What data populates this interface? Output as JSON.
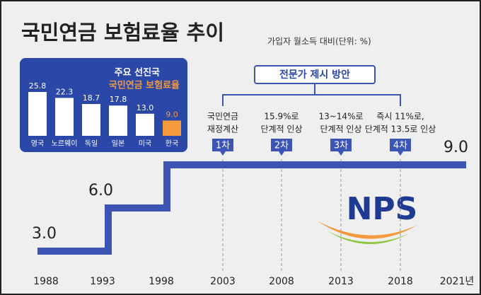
{
  "chart_data": [
    {
      "type": "step",
      "title": "국민연금 보험료율 추이",
      "subtitle": "가입자 월소득 대비(단위: %)",
      "x": [
        "1988",
        "1993",
        "1998",
        "2003",
        "2008",
        "2013",
        "2018",
        "2021년"
      ],
      "values": [
        3,
        6,
        9,
        9,
        9,
        9,
        9,
        9
      ],
      "value_labels": [
        "3.0",
        "6.0",
        null,
        null,
        null,
        null,
        null,
        "9.0"
      ],
      "color": "#3c54b4",
      "proposal_title": "전문가 제시 방안",
      "proposals": [
        {
          "stage": "1차",
          "x": "2003",
          "lines": [
            "국민연금",
            "재정계산"
          ]
        },
        {
          "stage": "2차",
          "x": "2008",
          "lines": [
            "15.9%로",
            "단계적 인상"
          ]
        },
        {
          "stage": "3차",
          "x": "2013",
          "lines": [
            "13~14%로",
            "단계적 인상"
          ]
        },
        {
          "stage": "4차",
          "x": "2018",
          "lines": [
            "즉시 11%로,",
            "단계적 13.5로 인상"
          ]
        }
      ]
    },
    {
      "type": "bar",
      "title": [
        "주요 선진국",
        "국민연금 보험료율"
      ],
      "categories": [
        "영국",
        "노르웨이",
        "독일",
        "일본",
        "미국",
        "한국"
      ],
      "values": [
        25.8,
        22.3,
        18.7,
        17.8,
        13,
        9
      ],
      "value_labels": [
        "25.8",
        "22.3",
        "18.7",
        "17.8",
        "13.0",
        "9.0"
      ],
      "colors": [
        "#ffffff",
        "#ffffff",
        "#ffffff",
        "#ffffff",
        "#ffffff",
        "#f39a3c"
      ]
    }
  ],
  "logo": "NPS"
}
